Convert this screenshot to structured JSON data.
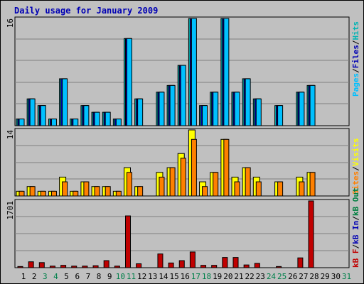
{
  "title": "Daily usage for January 2009",
  "colors": {
    "background": "#c0c0c0",
    "title": "#0000b4",
    "hits": "#00b4b4",
    "files": "#0000b4",
    "pages": "#00c0ff",
    "visits": "#ffff00",
    "sites": "#ff8000",
    "kb_out": "#008040",
    "kb_in": "#0000b4",
    "kb_f": "#c00000",
    "weekday": "#000000",
    "weekend": "#00804a"
  },
  "legends": {
    "top": [
      {
        "key": "pages",
        "text": "Pages"
      },
      {
        "key": "sep",
        "text": "/"
      },
      {
        "key": "files",
        "text": "Files"
      },
      {
        "key": "sep",
        "text": "/"
      },
      {
        "key": "hits",
        "text": "Hits"
      }
    ],
    "mid": [
      {
        "key": "sites",
        "text": "Sites"
      },
      {
        "key": "sep",
        "text": "/"
      },
      {
        "key": "visits",
        "text": "Visits"
      }
    ],
    "bot": [
      {
        "key": "kb_f",
        "text": "kB F"
      },
      {
        "key": "sep",
        "text": "/"
      },
      {
        "key": "kb_in",
        "text": "kB In"
      },
      {
        "key": "sep",
        "text": "/"
      },
      {
        "key": "kb_out",
        "text": "kB Out"
      }
    ]
  },
  "chart_data": [
    {
      "type": "bar",
      "panel": "hits",
      "title": "Daily usage for January 2009",
      "categories": [
        "1",
        "2",
        "3",
        "4",
        "5",
        "6",
        "7",
        "8",
        "9",
        "10",
        "11",
        "12",
        "13",
        "14",
        "15",
        "16",
        "17",
        "18",
        "19",
        "20",
        "21",
        "22",
        "23",
        "24",
        "25",
        "26",
        "27",
        "28",
        "29",
        "30",
        "31"
      ],
      "weekend": [
        "3",
        "4",
        "10",
        "11",
        "17",
        "18",
        "24",
        "25",
        "31"
      ],
      "ymax_label": "16",
      "ylim": [
        0,
        16
      ],
      "series": [
        {
          "name": "Hits",
          "values": [
            1,
            4,
            3,
            1,
            7,
            1,
            3,
            2,
            2,
            1,
            13,
            4,
            0,
            5,
            6,
            9,
            16,
            3,
            5,
            16,
            5,
            7,
            4,
            0,
            3,
            0,
            5,
            6,
            0,
            0,
            0
          ]
        },
        {
          "name": "Files",
          "values": [
            1,
            4,
            3,
            1,
            7,
            1,
            3,
            2,
            2,
            1,
            13,
            4,
            0,
            5,
            6,
            9,
            16,
            3,
            5,
            16,
            5,
            7,
            4,
            0,
            3,
            0,
            5,
            6,
            0,
            0,
            0
          ]
        },
        {
          "name": "Pages",
          "values": [
            1,
            4,
            3,
            1,
            7,
            1,
            3,
            2,
            2,
            1,
            13,
            4,
            0,
            5,
            6,
            9,
            16,
            3,
            5,
            16,
            5,
            7,
            4,
            0,
            3,
            0,
            5,
            6,
            0,
            0,
            0
          ]
        }
      ]
    },
    {
      "type": "bar",
      "panel": "visits",
      "categories": [
        "1",
        "2",
        "3",
        "4",
        "5",
        "6",
        "7",
        "8",
        "9",
        "10",
        "11",
        "12",
        "13",
        "14",
        "15",
        "16",
        "17",
        "18",
        "19",
        "20",
        "21",
        "22",
        "23",
        "24",
        "25",
        "26",
        "27",
        "28",
        "29",
        "30",
        "31"
      ],
      "ymax_label": "14",
      "ylim": [
        0,
        14
      ],
      "series": [
        {
          "name": "Visits",
          "values": [
            1,
            2,
            1,
            1,
            4,
            1,
            3,
            2,
            2,
            1,
            6,
            2,
            0,
            5,
            6,
            9,
            14,
            3,
            5,
            12,
            4,
            6,
            4,
            0,
            3,
            0,
            4,
            5,
            0,
            0,
            0
          ]
        },
        {
          "name": "Sites",
          "values": [
            1,
            2,
            1,
            1,
            3,
            1,
            3,
            2,
            2,
            1,
            5,
            2,
            0,
            4,
            6,
            8,
            12,
            2,
            5,
            12,
            3,
            6,
            3,
            0,
            3,
            0,
            3,
            5,
            0,
            0,
            0
          ]
        }
      ]
    },
    {
      "type": "bar",
      "panel": "kbytes",
      "categories": [
        "1",
        "2",
        "3",
        "4",
        "5",
        "6",
        "7",
        "8",
        "9",
        "10",
        "11",
        "12",
        "13",
        "14",
        "15",
        "16",
        "17",
        "18",
        "19",
        "20",
        "21",
        "22",
        "23",
        "24",
        "25",
        "26",
        "27",
        "28",
        "29",
        "30",
        "31"
      ],
      "ymax_label": "1701",
      "ylim": [
        0,
        1701
      ],
      "series": [
        {
          "name": "kB F",
          "values": [
            30,
            150,
            130,
            40,
            60,
            40,
            40,
            50,
            180,
            40,
            1320,
            100,
            0,
            350,
            120,
            180,
            400,
            60,
            60,
            260,
            260,
            70,
            110,
            0,
            30,
            0,
            250,
            1701,
            0,
            0,
            0
          ]
        },
        {
          "name": "kB In",
          "values": [
            0,
            0,
            0,
            0,
            0,
            0,
            0,
            0,
            0,
            0,
            0,
            0,
            0,
            0,
            0,
            0,
            0,
            0,
            0,
            0,
            0,
            0,
            0,
            0,
            0,
            0,
            0,
            0,
            0,
            0,
            0
          ]
        },
        {
          "name": "kB Out",
          "values": [
            0,
            0,
            0,
            0,
            0,
            0,
            0,
            0,
            0,
            0,
            0,
            0,
            0,
            0,
            0,
            0,
            0,
            0,
            0,
            0,
            0,
            0,
            0,
            0,
            0,
            0,
            0,
            0,
            0,
            0,
            0
          ]
        }
      ]
    }
  ]
}
